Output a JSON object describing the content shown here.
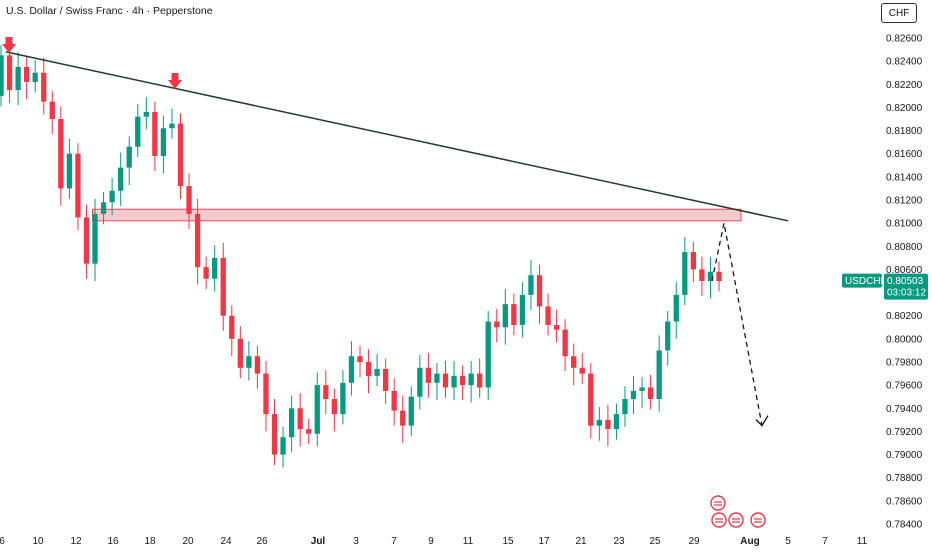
{
  "header": {
    "title": "U.S. Dollar / Swiss Franc · 4h · Pepperstone",
    "currency": "CHF"
  },
  "price_tag": {
    "symbol": "USDCHF",
    "price": "0.80503",
    "countdown": "03:03:12",
    "color": "#089981"
  },
  "colors": {
    "up": "#089981",
    "down": "#f23645",
    "trendline": "#1f3d2a",
    "zone_fill": "#f7c5cb",
    "zone_border": "#f23645",
    "arrow": "#f23645",
    "projection": "#131722"
  },
  "icons": [
    "down-arrow-marker-icon",
    "down-arrow-marker-icon",
    "event-flag-icon",
    "event-flag-icon",
    "event-flag-icon",
    "event-flag-icon"
  ],
  "chart_data": {
    "type": "candlestick",
    "timeframe": "4h",
    "symbol": "USDCHF",
    "y_axis": {
      "min": 0.784,
      "max": 0.826,
      "ticks": [
        "0.82600",
        "0.82400",
        "0.82200",
        "0.82000",
        "0.81800",
        "0.81600",
        "0.81400",
        "0.81200",
        "0.81000",
        "0.80800",
        "0.80600",
        "0.80400",
        "0.80200",
        "0.80000",
        "0.79800",
        "0.79600",
        "0.79400",
        "0.79200",
        "0.79000",
        "0.78800",
        "0.78600",
        "0.78400"
      ]
    },
    "x_axis": {
      "ticks": [
        {
          "label": "6",
          "bold": false
        },
        {
          "label": "10",
          "bold": false
        },
        {
          "label": "12",
          "bold": false
        },
        {
          "label": "16",
          "bold": false
        },
        {
          "label": "18",
          "bold": false
        },
        {
          "label": "20",
          "bold": false
        },
        {
          "label": "24",
          "bold": false
        },
        {
          "label": "26",
          "bold": false
        },
        {
          "label": "Jul",
          "bold": true
        },
        {
          "label": "3",
          "bold": false
        },
        {
          "label": "7",
          "bold": false
        },
        {
          "label": "9",
          "bold": false
        },
        {
          "label": "11",
          "bold": false
        },
        {
          "label": "15",
          "bold": false
        },
        {
          "label": "17",
          "bold": false
        },
        {
          "label": "21",
          "bold": false
        },
        {
          "label": "23",
          "bold": false
        },
        {
          "label": "25",
          "bold": false
        },
        {
          "label": "29",
          "bold": false
        },
        {
          "label": "Aug",
          "bold": true
        },
        {
          "label": "5",
          "bold": false
        },
        {
          "label": "7",
          "bold": false
        },
        {
          "label": "11",
          "bold": false
        }
      ]
    },
    "ohlc_path": [
      [
        0.821,
        0.8245
      ],
      [
        0.8245,
        0.8215
      ],
      [
        0.8215,
        0.8235
      ],
      [
        0.8235,
        0.8222
      ],
      [
        0.8222,
        0.823
      ],
      [
        0.823,
        0.8205
      ],
      [
        0.8205,
        0.819
      ],
      [
        0.819,
        0.813
      ],
      [
        0.813,
        0.816
      ],
      [
        0.816,
        0.8105
      ],
      [
        0.8105,
        0.8065
      ],
      [
        0.8065,
        0.8108
      ],
      [
        0.8108,
        0.8118
      ],
      [
        0.8118,
        0.8128
      ],
      [
        0.8128,
        0.8148
      ],
      [
        0.8148,
        0.8166
      ],
      [
        0.8166,
        0.8192
      ],
      [
        0.8192,
        0.8196
      ],
      [
        0.8196,
        0.8158
      ],
      [
        0.8158,
        0.8182
      ],
      [
        0.8182,
        0.8186
      ],
      [
        0.8186,
        0.8132
      ],
      [
        0.8132,
        0.8108
      ],
      [
        0.8108,
        0.8062
      ],
      [
        0.8062,
        0.8052
      ],
      [
        0.8052,
        0.807
      ],
      [
        0.807,
        0.802
      ],
      [
        0.802,
        0.8
      ],
      [
        0.8,
        0.7975
      ],
      [
        0.7975,
        0.7985
      ],
      [
        0.7985,
        0.797
      ],
      [
        0.797,
        0.7935
      ],
      [
        0.7935,
        0.79
      ],
      [
        0.79,
        0.7915
      ],
      [
        0.7915,
        0.794
      ],
      [
        0.794,
        0.7922
      ],
      [
        0.7922,
        0.7918
      ],
      [
        0.7918,
        0.796
      ],
      [
        0.796,
        0.7948
      ],
      [
        0.7948,
        0.7935
      ],
      [
        0.7935,
        0.7962
      ],
      [
        0.7962,
        0.7985
      ],
      [
        0.7985,
        0.798
      ],
      [
        0.798,
        0.7968
      ],
      [
        0.7968,
        0.7974
      ],
      [
        0.7974,
        0.7955
      ],
      [
        0.7955,
        0.7938
      ],
      [
        0.7938,
        0.7925
      ],
      [
        0.7925,
        0.795
      ],
      [
        0.795,
        0.7975
      ],
      [
        0.7975,
        0.7962
      ],
      [
        0.7962,
        0.797
      ],
      [
        0.797,
        0.7958
      ],
      [
        0.7958,
        0.7968
      ],
      [
        0.7968,
        0.796
      ],
      [
        0.796,
        0.797
      ],
      [
        0.797,
        0.7958
      ],
      [
        0.7958,
        0.8015
      ],
      [
        0.8015,
        0.801
      ],
      [
        0.801,
        0.803
      ],
      [
        0.803,
        0.8012
      ],
      [
        0.8012,
        0.8038
      ],
      [
        0.8038,
        0.8055
      ],
      [
        0.8055,
        0.8028
      ],
      [
        0.8028,
        0.8012
      ],
      [
        0.8012,
        0.8008
      ],
      [
        0.8008,
        0.7985
      ],
      [
        0.7985,
        0.7975
      ],
      [
        0.7975,
        0.797
      ],
      [
        0.797,
        0.7925
      ],
      [
        0.7925,
        0.793
      ],
      [
        0.793,
        0.7922
      ],
      [
        0.7922,
        0.7935
      ],
      [
        0.7935,
        0.7948
      ],
      [
        0.7948,
        0.7955
      ],
      [
        0.7955,
        0.7958
      ],
      [
        0.7958,
        0.7948
      ],
      [
        0.7948,
        0.799
      ],
      [
        0.799,
        0.8015
      ],
      [
        0.8015,
        0.8038
      ],
      [
        0.8038,
        0.8075
      ],
      [
        0.8075,
        0.806
      ],
      [
        0.806,
        0.805
      ],
      [
        0.805,
        0.8058
      ],
      [
        0.8058,
        0.805
      ]
    ],
    "annotations": {
      "trendline": {
        "from": [
          "6",
          0.8248
        ],
        "to": [
          "Aug",
          0.8102
        ]
      },
      "resistance_zone": {
        "low": 0.8102,
        "high": 0.8112
      },
      "markers": [
        "6",
        "19"
      ],
      "projection": [
        0.805,
        0.81,
        0.7925
      ]
    }
  }
}
